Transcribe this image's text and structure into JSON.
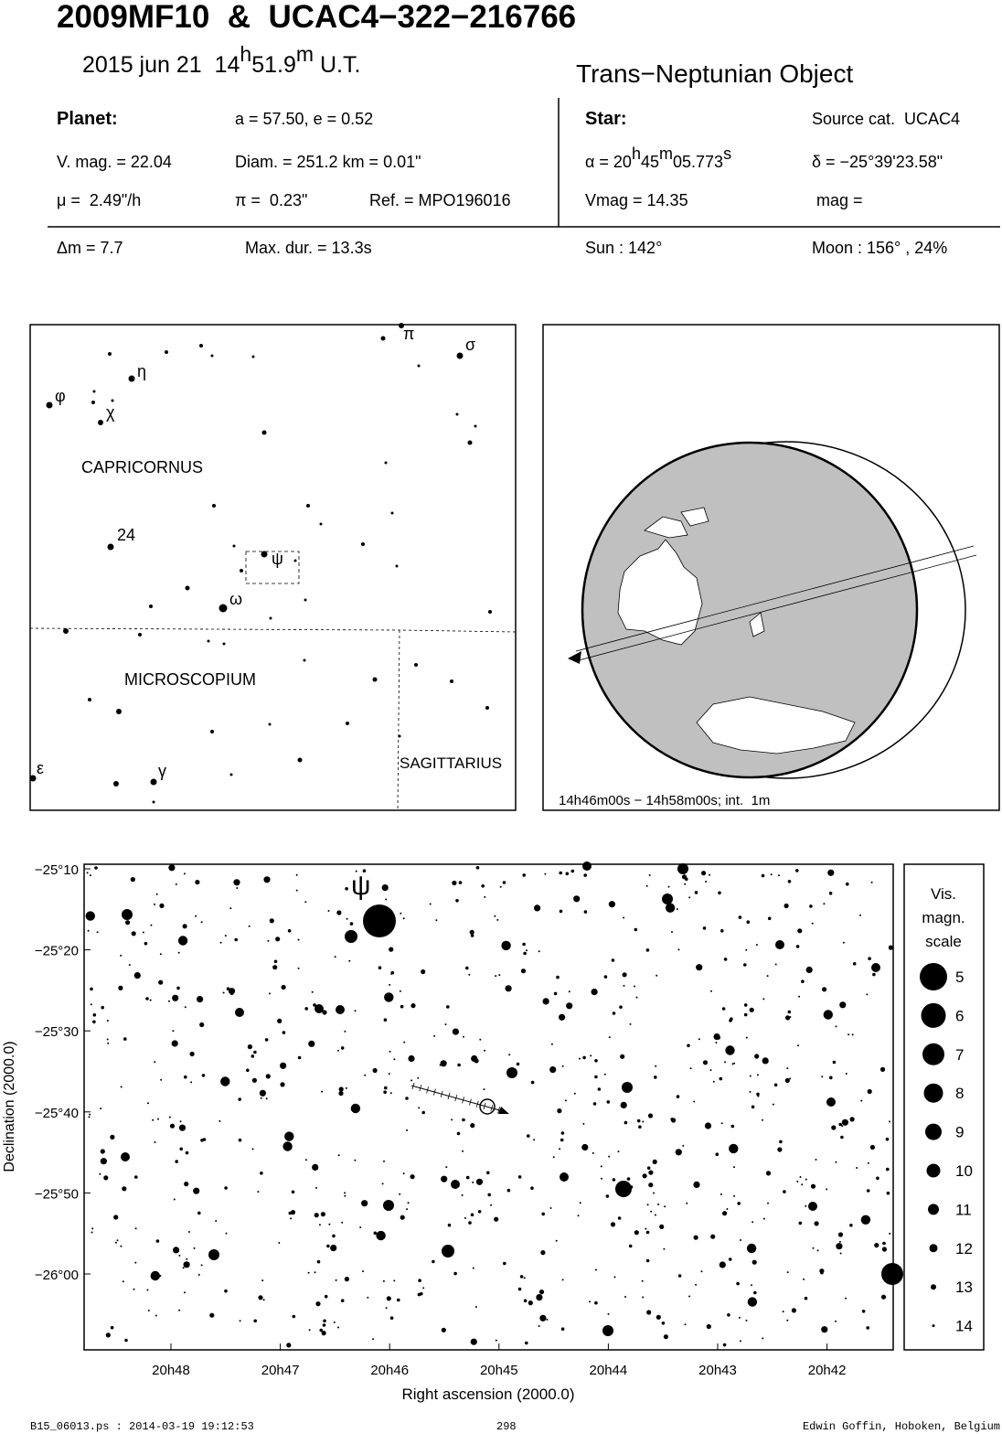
{
  "header": {
    "title": "2009MF10  &  UCAC4−322−216766",
    "date_parts": [
      "2015 jun 21  14",
      "h",
      "51.9",
      "m",
      " U.T."
    ],
    "object_type": "Trans−Neptunian Object"
  },
  "planet": {
    "label": "Planet:",
    "orbit": "a = 57.50, e = 0.52",
    "vmag": "V. mag. = 22.04",
    "diameter": "Diam. = 251.2 km = 0.01\"",
    "motion": "μ =  2.49\"/h",
    "parallax": "π =  0.23\"",
    "reference": "Ref. = MPO196016"
  },
  "star": {
    "label": "Star:",
    "source": "Source cat.  UCAC4",
    "ra_parts": [
      "α = 20",
      "h",
      "45",
      "m",
      "05.773",
      "s"
    ],
    "dec": "δ = −25°39'23.58\"",
    "vmag": "Vmag = 14.35",
    "mag": "mag ="
  },
  "circumstances": {
    "delta_mag": "Δm = 7.7",
    "max_duration": "Max. dur. = 13.3s",
    "sun": "Sun : 142°",
    "moon": "Moon : 156° , 24%"
  },
  "finder_chart": {
    "labels": [
      "π",
      "σ",
      "η",
      "φ",
      "χ",
      "CAPRICORNUS",
      "24",
      "ψ",
      "ω",
      "MICROSCOPIUM",
      "SAGITTARIUS",
      "ε",
      "γ"
    ]
  },
  "globe": {
    "caption": "14h46m00s − 14h58m00s; int.  1m"
  },
  "star_chart": {
    "psi_label": "ψ",
    "yticks": [
      "−25°10",
      "−25°20",
      "−25°30",
      "−25°40",
      "−25°50",
      "−26°00"
    ],
    "xticks": [
      "20h48",
      "20h47",
      "20h46",
      "20h45",
      "20h44",
      "20h43",
      "20h42"
    ],
    "ylabel": "Declination (2000.0)",
    "xlabel": "Right ascension (2000.0)",
    "legend": {
      "title_lines": [
        "Vis.",
        "magn.",
        "scale"
      ],
      "magnitudes": [
        5,
        6,
        7,
        8,
        9,
        10,
        11,
        12,
        13,
        14
      ]
    }
  },
  "footer": {
    "file": "B15_06013.ps : 2014-03-19 19:12:53",
    "page": "298",
    "author": "Edwin Goffin, Hoboken, Belgium"
  }
}
